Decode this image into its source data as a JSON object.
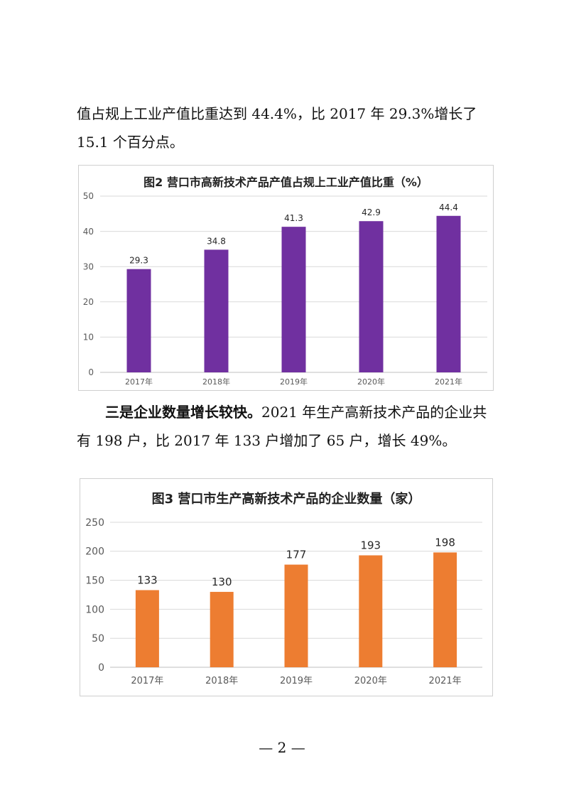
{
  "paragraph1": {
    "text": "值占规上工业产值比重达到 44.4%，比 2017 年 29.3%增长了 15.1 个百分点。"
  },
  "paragraph2": {
    "lead": "三是企业数量增长较快。",
    "text": "2021 年生产高新技术产品的企业共有 198 户，比 2017 年 133 户增加了 65 户，增长 49%。"
  },
  "footer": {
    "page": "— 2 —"
  },
  "chart_data": [
    {
      "type": "bar",
      "title": "图2  营口市高新技术产品产值占规上工业产值比重（%）",
      "categories": [
        "2017年",
        "2018年",
        "2019年",
        "2020年",
        "2021年"
      ],
      "values": [
        29.3,
        34.8,
        41.3,
        42.9,
        44.4
      ],
      "data_labels": [
        "29.3",
        "34.8",
        "41.3",
        "42.9",
        "44.4"
      ],
      "ylim": [
        0,
        50
      ],
      "yticks": [
        "0",
        "10",
        "20",
        "30",
        "40",
        "50"
      ],
      "grid": true,
      "color": "#7030a0"
    },
    {
      "type": "bar",
      "title": "图3  营口市生产高新技术产品的企业数量（家）",
      "categories": [
        "2017年",
        "2018年",
        "2019年",
        "2020年",
        "2021年"
      ],
      "values": [
        133,
        130,
        177,
        193,
        198
      ],
      "data_labels": [
        "133",
        "130",
        "177",
        "193",
        "198"
      ],
      "ylim": [
        0,
        250
      ],
      "yticks": [
        "0",
        "50",
        "100",
        "150",
        "200",
        "250"
      ],
      "grid": true,
      "color": "#ed7d31"
    }
  ]
}
